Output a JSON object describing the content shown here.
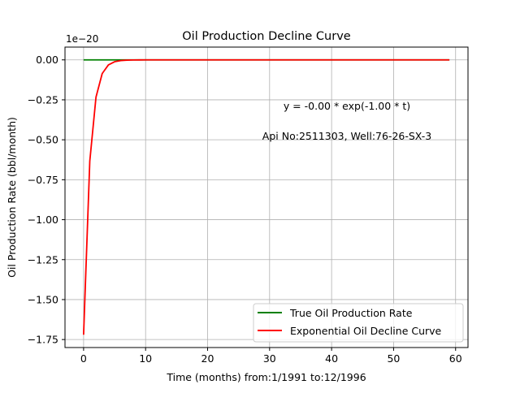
{
  "chart_data": {
    "type": "line",
    "title": "Oil Production Decline Curve",
    "xlabel": "Time (months) from:1/1991 to:12/1996",
    "ylabel": "Oil Production Rate (bbl/month)",
    "y_offset_text": "1e−20",
    "xlim": [
      -3,
      62
    ],
    "ylim": [
      -1.8,
      0.08
    ],
    "x_ticks": [
      0,
      10,
      20,
      30,
      40,
      50,
      60
    ],
    "x_tick_labels": [
      "0",
      "10",
      "20",
      "30",
      "40",
      "50",
      "60"
    ],
    "y_ticks": [
      0.0,
      -0.25,
      -0.5,
      -0.75,
      -1.0,
      -1.25,
      -1.5,
      -1.75
    ],
    "y_tick_labels": [
      "0.00",
      "−0.25",
      "−0.50",
      "−0.75",
      "−1.00",
      "−1.25",
      "−1.50",
      "−1.75"
    ],
    "grid": true,
    "legend_position": "lower-right",
    "annotations": [
      "y = -0.00 * exp(-1.00 * t)",
      "Api No:2511303, Well:76-26-SX-3"
    ],
    "series": [
      {
        "name": "True Oil Production Rate",
        "color": "#008000",
        "x": [
          0,
          59
        ],
        "y": [
          0,
          0
        ]
      },
      {
        "name": "Exponential Oil Decline Curve",
        "color": "#ff0000",
        "x": [
          0,
          1,
          2,
          3,
          4,
          5,
          6,
          7,
          8,
          9,
          10,
          20,
          30,
          40,
          50,
          59
        ],
        "y": [
          -1.72,
          -0.633,
          -0.233,
          -0.0856,
          -0.0315,
          -0.0116,
          -0.00426,
          -0.00157,
          -0.00058,
          -0.00021,
          -8e-05,
          0,
          0,
          0,
          0,
          0
        ]
      }
    ]
  }
}
